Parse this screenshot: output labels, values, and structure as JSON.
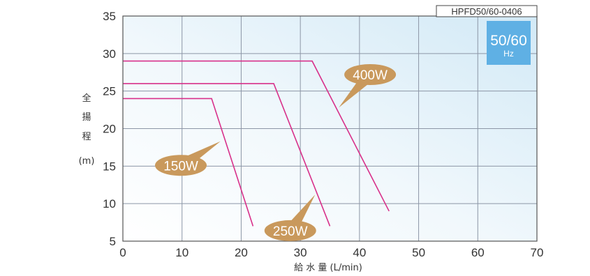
{
  "chart_data": {
    "type": "line",
    "model_code": "HPFD50/60-0406",
    "frequency_badge": {
      "value": "50/60",
      "unit": "Hz"
    },
    "ylabel_chars": [
      "全",
      "揚",
      "程"
    ],
    "yunit": "(m)",
    "xlabel": "給 水 量 (L/min)",
    "xlim": [
      0,
      70
    ],
    "ylim": [
      5,
      35
    ],
    "x_ticks": [
      "0",
      "10",
      "20",
      "30",
      "40",
      "50",
      "60",
      "70"
    ],
    "y_ticks": [
      "5",
      "10",
      "15",
      "20",
      "25",
      "30",
      "35"
    ],
    "grid": true,
    "line_color": "#d8308a",
    "label_color": "#c9995c",
    "series": [
      {
        "name": "150W",
        "x": [
          0,
          15,
          22
        ],
        "y": [
          24,
          24,
          7
        ]
      },
      {
        "name": "250W",
        "x": [
          0,
          25.5,
          35
        ],
        "y": [
          26,
          26,
          7
        ]
      },
      {
        "name": "400W",
        "x": [
          0,
          32,
          45
        ],
        "y": [
          29,
          29,
          9
        ]
      }
    ]
  }
}
